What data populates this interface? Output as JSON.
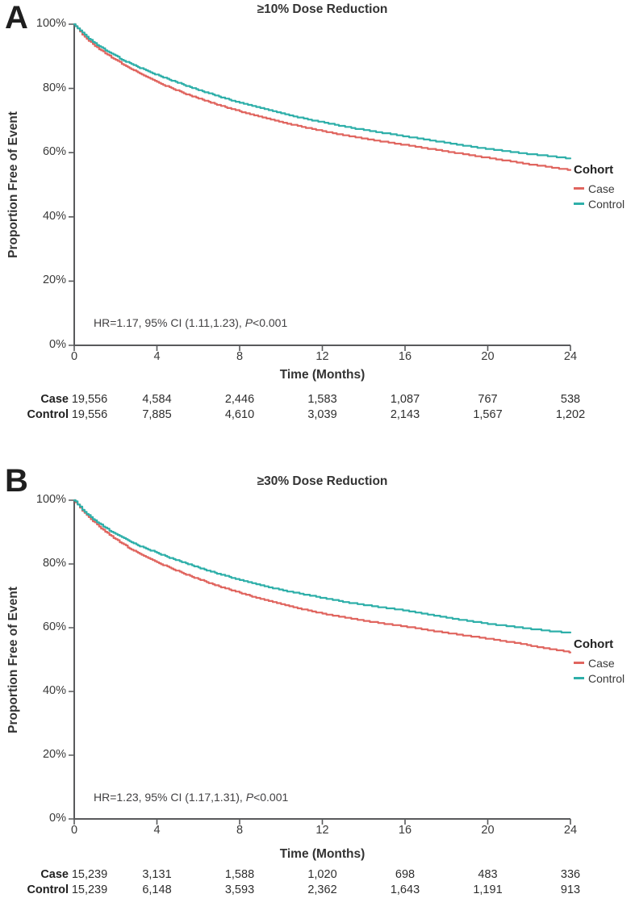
{
  "figure": {
    "background": "#ffffff",
    "colors": {
      "case": "#E0655F",
      "control": "#2EAFA9",
      "axis": "#595a5c",
      "text": "#2b2b2b"
    }
  },
  "chart_data": [
    {
      "panel": "A",
      "type": "line",
      "title": "≥10% Dose Reduction",
      "xlabel": "Time (Months)",
      "ylabel": "Proportion Free of Event",
      "xlim": [
        0,
        24
      ],
      "ylim": [
        0,
        100
      ],
      "grid": false,
      "legend_position": "right",
      "x_ticks": [
        0,
        4,
        8,
        12,
        16,
        20,
        24
      ],
      "x_tick_display": [
        "0",
        "4",
        "8",
        "12",
        "16",
        "20",
        "24"
      ],
      "y_ticks": [
        0,
        20,
        40,
        60,
        80,
        100
      ],
      "y_tick_display": [
        "100%",
        "80%",
        "60%",
        "40%",
        "20%",
        "0%"
      ],
      "annotation": {
        "prefix": "HR=1.17, 95% CI (1.11,1.23), ",
        "italic": "P",
        "suffix": "<0.001"
      },
      "legend": {
        "title": "Cohort",
        "items": [
          {
            "label": "Case",
            "color": "#E0655F"
          },
          {
            "label": "Control",
            "color": "#2EAFA9"
          }
        ]
      },
      "x": [
        0,
        0.5,
        1,
        1.5,
        2,
        2.5,
        3,
        4,
        5,
        6,
        7,
        8,
        9,
        10,
        11,
        12,
        13,
        14,
        15,
        16,
        17,
        18,
        19,
        20,
        21,
        22,
        23,
        24
      ],
      "series": [
        {
          "name": "Case",
          "color": "#E0655F",
          "values": [
            100,
            96.1,
            93.3,
            91.0,
            88.9,
            87.0,
            85.3,
            82.0,
            79.3,
            76.9,
            74.8,
            72.9,
            71.2,
            69.6,
            68.1,
            66.8,
            65.5,
            64.4,
            63.4,
            62.4,
            61.4,
            60.4,
            59.4,
            58.4,
            57.4,
            56.4,
            55.5,
            54.6
          ]
        },
        {
          "name": "Control",
          "color": "#2EAFA9",
          "values": [
            100,
            96.6,
            94.1,
            92.0,
            90.1,
            88.4,
            86.9,
            84.2,
            81.8,
            79.6,
            77.5,
            75.6,
            73.9,
            72.3,
            70.8,
            69.5,
            68.2,
            67.1,
            66.1,
            65.1,
            64.1,
            63.1,
            62.1,
            61.2,
            60.4,
            59.6,
            58.9,
            58.2
          ]
        }
      ],
      "risk_table": {
        "times": [
          0,
          4,
          8,
          12,
          16,
          20,
          24
        ],
        "rows": [
          {
            "label": "Case",
            "counts": [
              "19,556",
              "4,584",
              "2,446",
              "1,583",
              "1,087",
              "767",
              "538"
            ]
          },
          {
            "label": "Control",
            "counts": [
              "19,556",
              "7,885",
              "4,610",
              "3,039",
              "2,143",
              "1,567",
              "1,202"
            ]
          }
        ]
      }
    },
    {
      "panel": "B",
      "type": "line",
      "title": "≥30% Dose Reduction",
      "xlabel": "Time (Months)",
      "ylabel": "Proportion Free of Event",
      "xlim": [
        0,
        24
      ],
      "ylim": [
        0,
        100
      ],
      "grid": false,
      "legend_position": "right",
      "x_ticks": [
        0,
        4,
        8,
        12,
        16,
        20,
        24
      ],
      "x_tick_display": [
        "0",
        "4",
        "8",
        "12",
        "16",
        "20",
        "24"
      ],
      "y_ticks": [
        0,
        20,
        40,
        60,
        80,
        100
      ],
      "y_tick_display": [
        "100%",
        "80%",
        "60%",
        "40%",
        "20%",
        "0%"
      ],
      "annotation": {
        "prefix": "HR=1.23, 95% CI (1.17,1.31), ",
        "italic": "P",
        "suffix": "<0.001"
      },
      "legend": {
        "title": "Cohort",
        "items": [
          {
            "label": "Case",
            "color": "#E0655F"
          },
          {
            "label": "Control",
            "color": "#2EAFA9"
          }
        ]
      },
      "x": [
        0,
        0.5,
        1,
        1.5,
        2,
        2.5,
        3,
        4,
        5,
        6,
        7,
        8,
        9,
        10,
        11,
        12,
        13,
        14,
        15,
        16,
        17,
        18,
        19,
        20,
        21,
        22,
        23,
        24
      ],
      "series": [
        {
          "name": "Case",
          "color": "#E0655F",
          "values": [
            100,
            95.9,
            92.9,
            90.2,
            87.8,
            85.7,
            83.8,
            80.6,
            77.8,
            75.3,
            73.0,
            71.0,
            69.1,
            67.4,
            65.9,
            64.5,
            63.3,
            62.2,
            61.3,
            60.4,
            59.4,
            58.4,
            57.5,
            56.6,
            55.6,
            54.5,
            53.4,
            52.3
          ]
        },
        {
          "name": "Control",
          "color": "#2EAFA9",
          "values": [
            100,
            96.4,
            93.7,
            91.4,
            89.4,
            87.7,
            86.1,
            83.5,
            81.1,
            78.9,
            76.9,
            75.0,
            73.4,
            71.9,
            70.6,
            69.4,
            68.2,
            67.2,
            66.3,
            65.4,
            64.3,
            63.2,
            62.2,
            61.3,
            60.5,
            59.7,
            59.0,
            58.4
          ]
        }
      ],
      "risk_table": {
        "times": [
          0,
          4,
          8,
          12,
          16,
          20,
          24
        ],
        "rows": [
          {
            "label": "Case",
            "counts": [
              "15,239",
              "3,131",
              "1,588",
              "1,020",
              "698",
              "483",
              "336"
            ]
          },
          {
            "label": "Control",
            "counts": [
              "15,239",
              "6,148",
              "3,593",
              "2,362",
              "1,643",
              "1,191",
              "913"
            ]
          }
        ]
      }
    }
  ]
}
